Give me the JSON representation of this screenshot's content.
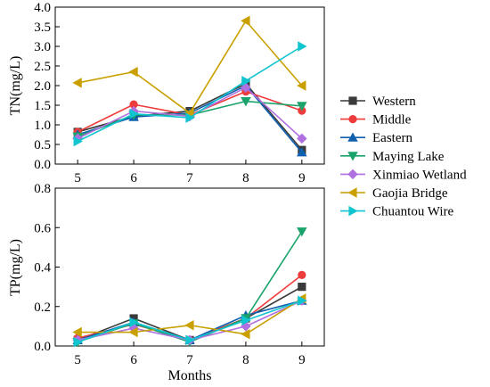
{
  "chart_data": [
    {
      "type": "line",
      "xlabel": "",
      "ylabel": "TN(mg/L)",
      "x": [
        5,
        6,
        7,
        8,
        9
      ],
      "xlim": [
        4.6,
        9.4
      ],
      "ylim": [
        0,
        4.0
      ],
      "yticks": [
        "0.0",
        "0.5",
        "1.0",
        "1.5",
        "2.0",
        "2.5",
        "3.0",
        "3.5",
        "4.0"
      ],
      "xticks": [
        "5",
        "6",
        "7",
        "8",
        "9"
      ],
      "series": [
        {
          "name": "Western",
          "values": [
            0.82,
            1.22,
            1.35,
            2.05,
            0.36
          ]
        },
        {
          "name": "Middle",
          "values": [
            0.82,
            1.52,
            1.25,
            1.85,
            1.36
          ]
        },
        {
          "name": "Eastern",
          "values": [
            0.75,
            1.2,
            1.3,
            2.0,
            0.3
          ]
        },
        {
          "name": "Maying Lake",
          "values": [
            0.7,
            1.25,
            1.25,
            1.6,
            1.48
          ]
        },
        {
          "name": "Xinmiao Wetland",
          "values": [
            0.65,
            1.35,
            1.22,
            1.95,
            0.65
          ]
        },
        {
          "name": "Gaojia Bridge",
          "values": [
            2.07,
            2.35,
            1.3,
            3.65,
            2.0
          ]
        },
        {
          "name": "Chuantou Wire",
          "values": [
            0.58,
            1.28,
            1.18,
            2.12,
            3.0
          ]
        }
      ]
    },
    {
      "type": "line",
      "xlabel": "Months",
      "ylabel": "TP(mg/L)",
      "x": [
        5,
        6,
        7,
        8,
        9
      ],
      "xlim": [
        4.6,
        9.4
      ],
      "ylim": [
        0,
        0.8
      ],
      "yticks": [
        "0.0",
        "0.2",
        "0.4",
        "0.6",
        "0.8"
      ],
      "xticks": [
        "5",
        "6",
        "7",
        "8",
        "9"
      ],
      "series": [
        {
          "name": "Western",
          "values": [
            0.03,
            0.14,
            0.03,
            0.14,
            0.3
          ]
        },
        {
          "name": "Middle",
          "values": [
            0.04,
            0.11,
            0.03,
            0.14,
            0.36
          ]
        },
        {
          "name": "Eastern",
          "values": [
            0.03,
            0.12,
            0.03,
            0.155,
            0.23
          ]
        },
        {
          "name": "Maying Lake",
          "values": [
            0.02,
            0.115,
            0.02,
            0.14,
            0.58
          ]
        },
        {
          "name": "Xinmiao Wetland",
          "values": [
            0.03,
            0.09,
            0.03,
            0.1,
            0.23
          ]
        },
        {
          "name": "Gaojia Bridge",
          "values": [
            0.07,
            0.07,
            0.105,
            0.06,
            0.24
          ]
        },
        {
          "name": "Chuantou Wire",
          "values": [
            0.02,
            0.12,
            0.03,
            0.13,
            0.23
          ]
        }
      ]
    }
  ],
  "legend": {
    "placement": "right",
    "items": [
      {
        "name": "Western",
        "color": "#3a3a3a",
        "marker": "square"
      },
      {
        "name": "Middle",
        "color": "#ee3b3b",
        "marker": "circle"
      },
      {
        "name": "Eastern",
        "color": "#1060b0",
        "marker": "triangle-up"
      },
      {
        "name": "Maying Lake",
        "color": "#1aa36a",
        "marker": "triangle-down"
      },
      {
        "name": "Xinmiao Wetland",
        "color": "#b070e0",
        "marker": "diamond"
      },
      {
        "name": "Gaojia Bridge",
        "color": "#c9a000",
        "marker": "triangle-left"
      },
      {
        "name": "Chuantou Wire",
        "color": "#10c4d0",
        "marker": "triangle-right"
      }
    ]
  }
}
